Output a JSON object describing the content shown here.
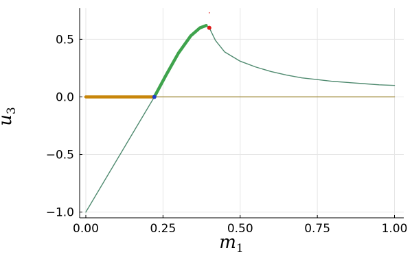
{
  "chart_data": {
    "type": "line",
    "title": "",
    "xlabel": {
      "main": "m",
      "sub": "1"
    },
    "ylabel": {
      "main": "u",
      "sub": "3"
    },
    "xlim": [
      -0.02,
      1.03
    ],
    "ylim": [
      -1.05,
      0.77
    ],
    "x_ticks": [
      0.0,
      0.25,
      0.5,
      0.75,
      1.0
    ],
    "x_tick_labels": [
      "0.00",
      "0.25",
      "0.50",
      "0.75",
      "1.00"
    ],
    "y_ticks": [
      -1.0,
      -0.5,
      0.0,
      0.5
    ],
    "y_tick_labels": [
      "−1.0",
      "−0.5",
      "0.0",
      "0.5"
    ],
    "grid": true,
    "colors": {
      "main_curve": "#4f8a6f",
      "bright_segment": "#3fa34d",
      "zero_line": "#a08a3a",
      "zero_line_thick": "#c8860a",
      "marker_blue": "#1f3ec8",
      "marker_red": "#e01818"
    },
    "series": [
      {
        "style": "thin",
        "color": "#4f8a6f",
        "x": [
          0.0,
          0.222,
          0.26,
          0.3,
          0.34,
          0.37,
          0.39,
          0.4,
          0.42,
          0.45,
          0.5,
          0.55,
          0.6,
          0.65,
          0.7,
          0.75,
          0.8,
          0.85,
          0.9,
          0.95,
          1.0
        ],
        "y": [
          -1.0,
          0.0,
          0.19,
          0.38,
          0.53,
          0.6,
          0.62,
          0.6,
          0.49,
          0.39,
          0.31,
          0.26,
          0.22,
          0.19,
          0.165,
          0.15,
          0.135,
          0.125,
          0.115,
          0.105,
          0.1
        ]
      },
      {
        "style": "thick",
        "color": "#3fa34d",
        "x": [
          0.222,
          0.26,
          0.3,
          0.34,
          0.37,
          0.39
        ],
        "y": [
          0.0,
          0.19,
          0.38,
          0.53,
          0.6,
          0.62
        ]
      },
      {
        "style": "thin",
        "color": "#a08a3a",
        "x": [
          0.0,
          1.0
        ],
        "y": [
          0.0,
          0.0
        ]
      },
      {
        "style": "thick",
        "color": "#c8860a",
        "x": [
          0.0,
          0.222
        ],
        "y": [
          0.0,
          0.0
        ]
      }
    ],
    "markers": [
      {
        "x": 0.222,
        "y": 0.0,
        "color": "#1f3ec8"
      },
      {
        "x": 0.4,
        "y": 0.6,
        "color": "#e01818"
      },
      {
        "x": 0.4,
        "y": 0.73,
        "color": "#e01818",
        "size": "tiny"
      }
    ]
  }
}
